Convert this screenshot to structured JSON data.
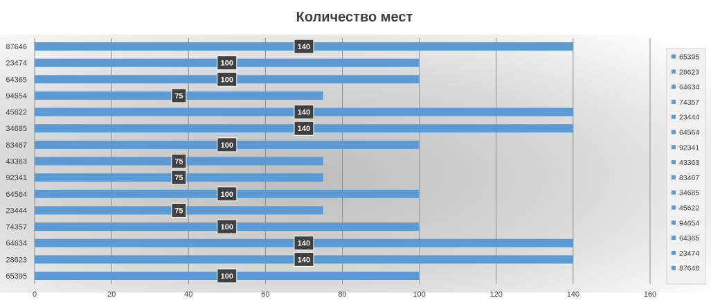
{
  "chart_data": {
    "type": "bar",
    "orientation": "horizontal",
    "title": "Количество мест",
    "xlabel": "",
    "ylabel": "",
    "xlim": [
      0,
      160
    ],
    "x_ticks": [
      0,
      20,
      40,
      60,
      80,
      100,
      120,
      140,
      160
    ],
    "grid": true,
    "legend": "right",
    "bar_color": "#5b9bd5",
    "label_box_color": "#404040",
    "categories": [
      "65395",
      "28623",
      "64634",
      "74357",
      "23444",
      "64564",
      "92341",
      "43363",
      "83467",
      "34685",
      "45622",
      "94654",
      "64365",
      "23474",
      "87646"
    ],
    "values": [
      100,
      140,
      140,
      100,
      75,
      100,
      75,
      75,
      100,
      140,
      140,
      75,
      100,
      100,
      140
    ],
    "data_labels": [
      "100",
      "140",
      "140",
      "100",
      "75",
      "100",
      "75",
      "75",
      "100",
      "140",
      "140",
      "75",
      "100",
      "100",
      "140"
    ],
    "legend_entries": [
      "65395",
      "28623",
      "64634",
      "74357",
      "23444",
      "64564",
      "92341",
      "43363",
      "83467",
      "34685",
      "45622",
      "94654",
      "64365",
      "23474",
      "87646"
    ]
  }
}
